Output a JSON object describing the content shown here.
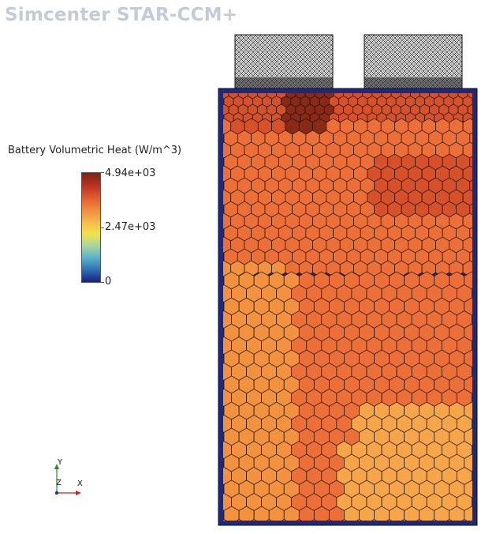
{
  "app": {
    "brand": "Simcenter STAR-CCM+"
  },
  "legend": {
    "title": "Battery Volumetric Heat (W/m^3)",
    "max_label": "4.94e+03",
    "mid_label": "2.47e+03",
    "min_label": "0",
    "max_value": 4940,
    "min_value": 0,
    "colormap": [
      "#1a1f7a",
      "#2f6fb5",
      "#5ab3c9",
      "#a9d6a0",
      "#f0e24a",
      "#f5b84a",
      "#ef8a3c",
      "#de5a2c",
      "#b8321f",
      "#7a2412"
    ]
  },
  "triad": {
    "y_label": "Y",
    "z_label": "Z",
    "x_label": "X"
  },
  "colors": {
    "cell_border": "#111111",
    "blue_region": "#1b2a80",
    "hot_dark": "#8a2a14",
    "hot": "#d6512a",
    "mid": "#ec6f37",
    "warm": "#f2923f",
    "warmer": "#f6a649"
  }
}
